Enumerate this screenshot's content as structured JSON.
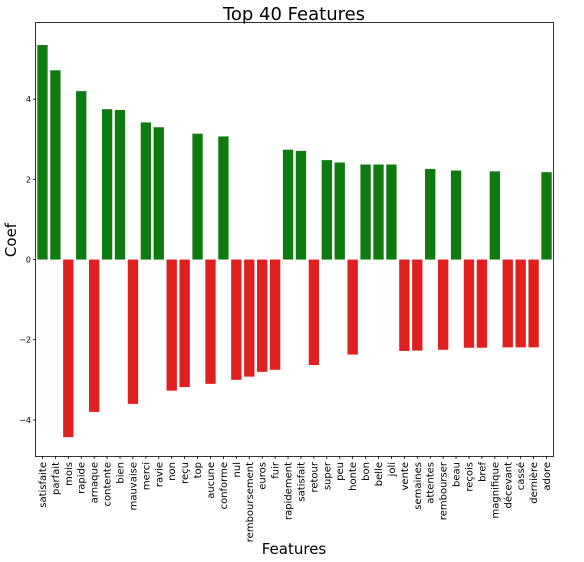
{
  "chart_data": {
    "type": "bar",
    "title": "Top 40 Features",
    "xlabel": "Features",
    "ylabel": "Coef",
    "ylim": [
      -4.9,
      5.9
    ],
    "yticks": [
      -4,
      -2,
      0,
      2,
      4
    ],
    "grid": false,
    "colors": {
      "positive": "#0f7a0f",
      "negative": "#e01f1f"
    },
    "categories": [
      "satisfaite",
      "parfait",
      "mois",
      "rapide",
      "arnaque",
      "contente",
      "bien",
      "mauvaise",
      "merci",
      "ravie",
      "non",
      "reçu",
      "top",
      "aucune",
      "conforme",
      "nul",
      "remboursement",
      "euros",
      "fuir",
      "rapidement",
      "satisfait",
      "retour",
      "super",
      "peu",
      "honte",
      "bon",
      "belle",
      "joli",
      "vente",
      "semaines",
      "attentes",
      "rembourser",
      "beau",
      "reçois",
      "bref",
      "magnifique",
      "décevant",
      "cassé",
      "dernière",
      "adore"
    ],
    "values": [
      5.35,
      4.72,
      -4.43,
      4.2,
      -3.8,
      3.75,
      3.73,
      -3.6,
      3.42,
      3.3,
      -3.27,
      -3.18,
      3.14,
      -3.1,
      3.07,
      -3.0,
      -2.92,
      -2.8,
      -2.75,
      2.74,
      2.71,
      -2.63,
      2.48,
      2.42,
      -2.37,
      2.37,
      2.37,
      2.37,
      -2.28,
      -2.27,
      2.26,
      -2.25,
      2.22,
      -2.2,
      -2.2,
      2.2,
      -2.19,
      -2.19,
      -2.19,
      2.18
    ]
  }
}
